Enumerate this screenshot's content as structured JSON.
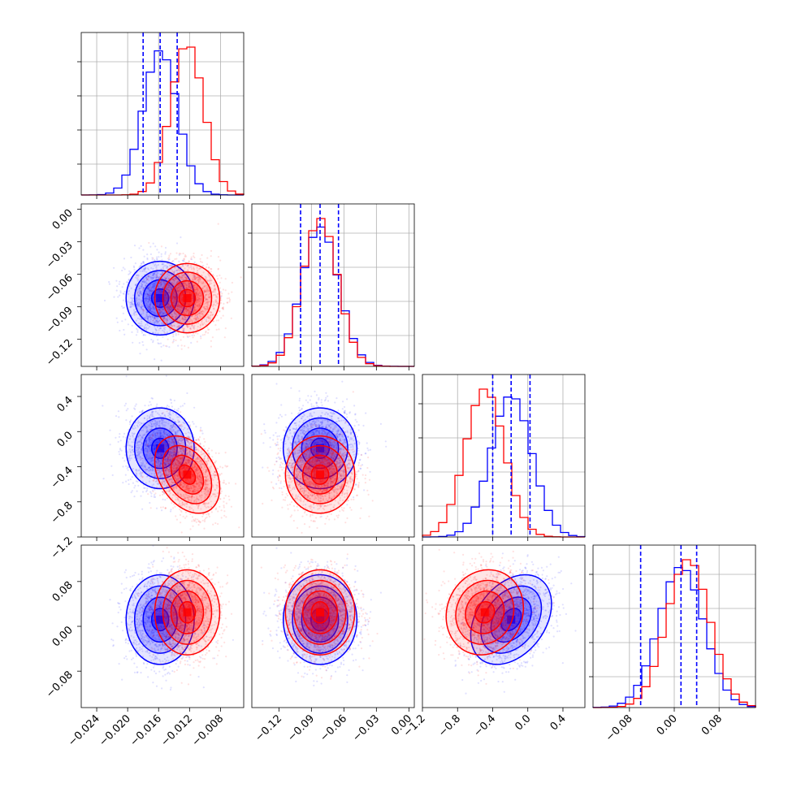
{
  "chart_data": {
    "type": "corner",
    "colors": {
      "series_a": "#0000ff",
      "series_b": "#ff0000",
      "quantile_line": "#0000ff",
      "grid": "#b0b0b0"
    },
    "grid": true,
    "parameters": [
      {
        "range": [
          -0.026,
          -0.005
        ],
        "ticks": [
          -0.024,
          -0.02,
          -0.016,
          -0.012,
          -0.008
        ],
        "tick_labels": [
          "−0.024",
          "−0.020",
          "−0.016",
          "−0.012",
          "−0.008"
        ]
      },
      {
        "range": [
          -0.145,
          0.005
        ],
        "ticks": [
          -0.12,
          -0.09,
          -0.06,
          -0.03,
          0.0
        ],
        "tick_labels": [
          "−0.12",
          "−0.09",
          "−0.06",
          "−0.03",
          "0.00"
        ]
      },
      {
        "range": [
          -1.2,
          0.65
        ],
        "ticks": [
          -1.2,
          -0.8,
          -0.4,
          0.0,
          0.4
        ],
        "tick_labels": [
          "−1.2",
          "−0.8",
          "−0.4",
          "0.0",
          "0.4"
        ]
      },
      {
        "range": [
          -0.145,
          0.145
        ],
        "ticks": [
          -0.08,
          0.0,
          0.08
        ],
        "tick_labels": [
          "−0.08",
          "0.00",
          "0.08"
        ]
      }
    ],
    "series": [
      {
        "color": "#0000ff",
        "mean": [
          -0.0158,
          -0.082,
          -0.19,
          0.012
        ],
        "std": [
          0.0022,
          0.017,
          0.23,
          0.04
        ],
        "corr": [
          [
            1,
            0,
            0,
            0
          ],
          [
            0,
            1,
            0,
            0
          ],
          [
            0,
            0,
            1,
            0.35
          ],
          [
            0,
            0,
            0.35,
            1
          ]
        ]
      },
      {
        "color": "#ff0000",
        "mean": [
          -0.0123,
          -0.082,
          -0.49,
          0.025
        ],
        "std": [
          0.0021,
          0.016,
          0.22,
          0.038
        ],
        "corr": [
          [
            1,
            0,
            -0.35,
            0
          ],
          [
            0,
            1,
            0,
            0
          ],
          [
            -0.35,
            0,
            1,
            0.1
          ],
          [
            0,
            0,
            0.1,
            1
          ]
        ]
      }
    ],
    "quantiles": [
      [
        -0.018,
        -0.0158,
        -0.0136
      ],
      [
        -0.1,
        -0.082,
        -0.065
      ],
      [
        -0.4,
        -0.19,
        0.025
      ],
      [
        -0.06,
        0.012,
        0.04
      ]
    ]
  }
}
